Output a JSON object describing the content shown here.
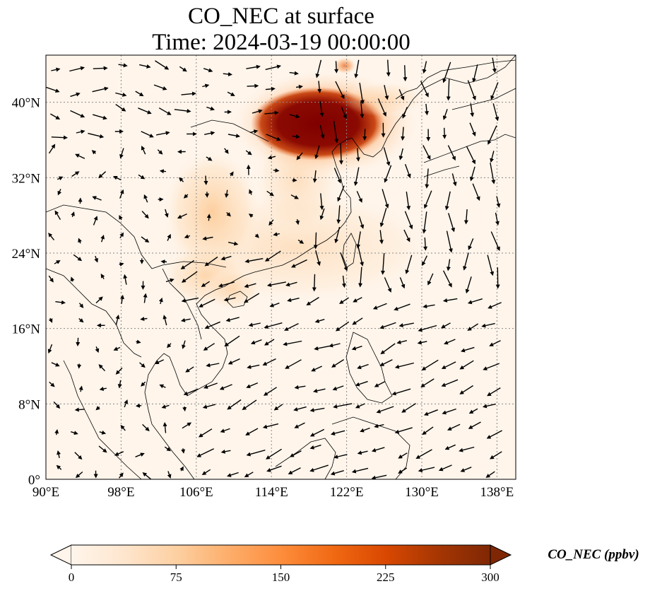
{
  "title": {
    "line1": "CO_NEC at surface",
    "line2": "Time: 2024-03-19 00:00:00"
  },
  "map": {
    "lon_range": [
      90,
      140
    ],
    "lat_range": [
      0,
      45
    ],
    "lon_ticks": [
      {
        "value": 90,
        "label": "90°E"
      },
      {
        "value": 98,
        "label": "98°E"
      },
      {
        "value": 106,
        "label": "106°E"
      },
      {
        "value": 114,
        "label": "114°E"
      },
      {
        "value": 122,
        "label": "122°E"
      },
      {
        "value": 130,
        "label": "130°E"
      },
      {
        "value": 138,
        "label": "138°E"
      }
    ],
    "lat_ticks": [
      {
        "value": 0,
        "label": "0°"
      },
      {
        "value": 8,
        "label": "8°N"
      },
      {
        "value": 16,
        "label": "16°N"
      },
      {
        "value": 24,
        "label": "24°N"
      },
      {
        "value": 32,
        "label": "32°N"
      },
      {
        "value": 40,
        "label": "40°N"
      }
    ],
    "gridlines": true,
    "field_variable": "CO_NEC",
    "background_color": "#fff5eb"
  },
  "colorbar": {
    "label": "CO_NEC (ppbv)",
    "min": 0,
    "max": 300,
    "extend": "both",
    "ticks": [
      {
        "value": 0,
        "label": "0"
      },
      {
        "value": 75,
        "label": "75"
      },
      {
        "value": 150,
        "label": "150"
      },
      {
        "value": 225,
        "label": "225"
      },
      {
        "value": 300,
        "label": "300"
      }
    ],
    "colormap": [
      "#fff5eb",
      "#fee6ce",
      "#fdd0a2",
      "#fdae6b",
      "#fd8d3c",
      "#f16913",
      "#d94801",
      "#a63603",
      "#7f2704"
    ]
  }
}
